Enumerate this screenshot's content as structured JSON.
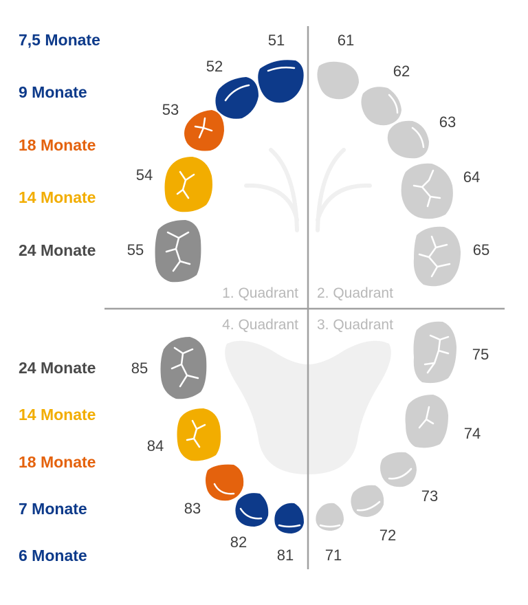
{
  "colors": {
    "blue": "#0d3a8a",
    "orange": "#e4620d",
    "yellow": "#f2ad00",
    "dark_gray": "#8e8e8e",
    "light_gray": "#cfcfcf",
    "divider": "#a0a0a0",
    "text_dark": "#3f3f3f"
  },
  "quadrants": {
    "q1": "1. Quadrant",
    "q2": "2. Quadrant",
    "q3": "3. Quadrant",
    "q4": "4. Quadrant"
  },
  "upper_ages": [
    {
      "label": "7,5 Monate",
      "color": "#0d3a8a"
    },
    {
      "label": "9 Monate",
      "color": "#0d3a8a"
    },
    {
      "label": "18 Monate",
      "color": "#e4620d"
    },
    {
      "label": "14 Monate",
      "color": "#f2ad00"
    },
    {
      "label": "24 Monate",
      "color": "#4a4a4a"
    }
  ],
  "lower_ages": [
    {
      "label": "24 Monate",
      "color": "#4a4a4a"
    },
    {
      "label": "14 Monate",
      "color": "#f2ad00"
    },
    {
      "label": "18 Monate",
      "color": "#e4620d"
    },
    {
      "label": "7 Monate",
      "color": "#0d3a8a"
    },
    {
      "label": "6 Monate",
      "color": "#0d3a8a"
    }
  ],
  "teeth": {
    "t51": "51",
    "t52": "52",
    "t53": "53",
    "t54": "54",
    "t55": "55",
    "t61": "61",
    "t62": "62",
    "t63": "63",
    "t64": "64",
    "t65": "65",
    "t71": "71",
    "t72": "72",
    "t73": "73",
    "t74": "74",
    "t75": "75",
    "t81": "81",
    "t82": "82",
    "t83": "83",
    "t84": "84",
    "t85": "85"
  }
}
